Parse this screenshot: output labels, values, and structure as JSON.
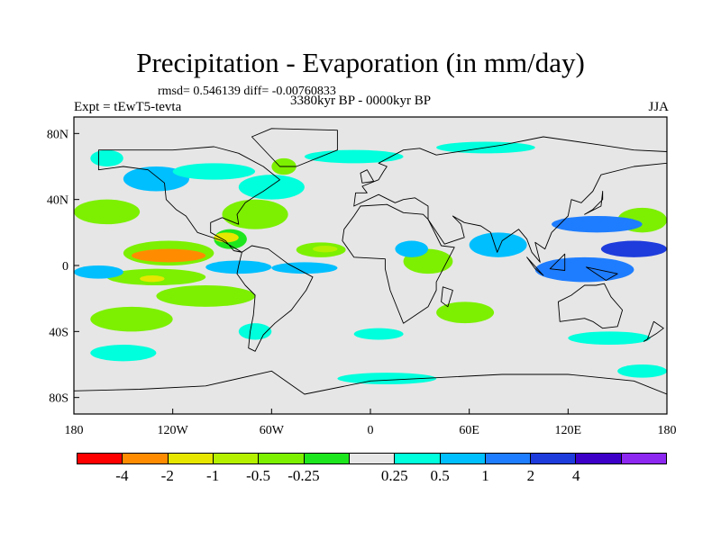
{
  "title": "Precipitation - Evaporation (in mm/day)",
  "stats": "rmsd= 0.546139 diff= -0.00760833",
  "experiment": "Expt = tEwT5-tevta",
  "period": "3380kyr BP - 0000kyr BP",
  "season": "JJA",
  "map": {
    "lon_range": [
      -180,
      180
    ],
    "lat_range": [
      -90,
      90
    ],
    "y_ticks": [
      {
        "label": "80N",
        "lat": 80
      },
      {
        "label": "40N",
        "lat": 40
      },
      {
        "label": "0",
        "lat": 0
      },
      {
        "label": "40S",
        "lat": -40
      },
      {
        "label": "80S",
        "lat": -80
      }
    ],
    "x_ticks": [
      {
        "label": "180",
        "lon": -180
      },
      {
        "label": "120W",
        "lon": -120
      },
      {
        "label": "60W",
        "lon": -60
      },
      {
        "label": "0",
        "lon": 0
      },
      {
        "label": "60E",
        "lon": 60
      },
      {
        "label": "120E",
        "lon": 120
      },
      {
        "label": "180",
        "lon": 180
      }
    ],
    "background_color": "#e6e6e6",
    "anomaly_regions": [
      {
        "lon": [
          -150,
          -95
        ],
        "lat": [
          0,
          15
        ],
        "level": 4
      },
      {
        "lon": [
          -95,
          -75
        ],
        "lat": [
          10,
          22
        ],
        "level": 5
      },
      {
        "lon": [
          -160,
          -100
        ],
        "lat": [
          -12,
          -2
        ],
        "level": 4
      },
      {
        "lon": [
          -45,
          -15
        ],
        "lat": [
          5,
          14
        ],
        "level": 4
      },
      {
        "lon": [
          -130,
          -70
        ],
        "lat": [
          -25,
          -12
        ],
        "level": 4
      },
      {
        "lon": [
          -90,
          -50
        ],
        "lat": [
          22,
          40
        ],
        "level": 4
      },
      {
        "lon": [
          -180,
          -140
        ],
        "lat": [
          25,
          40
        ],
        "level": 4
      },
      {
        "lon": [
          150,
          180
        ],
        "lat": [
          20,
          35
        ],
        "level": 4
      },
      {
        "lon": [
          -170,
          -120
        ],
        "lat": [
          -40,
          -25
        ],
        "level": 4
      },
      {
        "lon": [
          20,
          50
        ],
        "lat": [
          -5,
          10
        ],
        "level": 4
      },
      {
        "lon": [
          40,
          75
        ],
        "lat": [
          -35,
          -22
        ],
        "level": 4
      },
      {
        "lon": [
          -60,
          -45
        ],
        "lat": [
          55,
          65
        ],
        "level": 4
      },
      {
        "lon": [
          -145,
          -100
        ],
        "lat": [
          2,
          10
        ],
        "level": 1
      },
      {
        "lon": [
          -95,
          -80
        ],
        "lat": [
          14,
          20
        ],
        "level": 2
      },
      {
        "lon": [
          -140,
          -125
        ],
        "lat": [
          -10,
          -6
        ],
        "level": 2
      },
      {
        "lon": [
          -35,
          -20
        ],
        "lat": [
          8,
          12
        ],
        "level": 3
      },
      {
        "lon": [
          -180,
          -150
        ],
        "lat": [
          -8,
          0
        ],
        "level": 8
      },
      {
        "lon": [
          -100,
          -60
        ],
        "lat": [
          -5,
          3
        ],
        "level": 8
      },
      {
        "lon": [
          -80,
          -40
        ],
        "lat": [
          40,
          55
        ],
        "level": 7
      },
      {
        "lon": [
          -150,
          -110
        ],
        "lat": [
          45,
          60
        ],
        "level": 8
      },
      {
        "lon": [
          -60,
          -20
        ],
        "lat": [
          -5,
          2
        ],
        "level": 8
      },
      {
        "lon": [
          15,
          35
        ],
        "lat": [
          5,
          15
        ],
        "level": 8
      },
      {
        "lon": [
          60,
          95
        ],
        "lat": [
          5,
          20
        ],
        "level": 8
      },
      {
        "lon": [
          100,
          160
        ],
        "lat": [
          -10,
          5
        ],
        "level": 9
      },
      {
        "lon": [
          110,
          165
        ],
        "lat": [
          20,
          30
        ],
        "level": 9
      },
      {
        "lon": [
          140,
          180
        ],
        "lat": [
          5,
          15
        ],
        "level": 10
      },
      {
        "lon": [
          -120,
          -70
        ],
        "lat": [
          52,
          62
        ],
        "level": 7
      },
      {
        "lon": [
          -40,
          20
        ],
        "lat": [
          62,
          70
        ],
        "level": 7
      },
      {
        "lon": [
          40,
          100
        ],
        "lat": [
          68,
          75
        ],
        "level": 7
      },
      {
        "lon": [
          -170,
          -150
        ],
        "lat": [
          60,
          70
        ],
        "level": 7
      },
      {
        "lon": [
          -80,
          -60
        ],
        "lat": [
          -45,
          -35
        ],
        "level": 7
      },
      {
        "lon": [
          -10,
          20
        ],
        "lat": [
          -45,
          -38
        ],
        "level": 7
      },
      {
        "lon": [
          -170,
          -130
        ],
        "lat": [
          -58,
          -48
        ],
        "level": 7
      },
      {
        "lon": [
          -20,
          40
        ],
        "lat": [
          -72,
          -65
        ],
        "level": 7
      },
      {
        "lon": [
          120,
          170
        ],
        "lat": [
          -48,
          -40
        ],
        "level": 7
      },
      {
        "lon": [
          150,
          180
        ],
        "lat": [
          -68,
          -60
        ],
        "level": 7
      }
    ],
    "land": [
      [
        [
          -165,
          70
        ],
        [
          -140,
          70
        ],
        [
          -120,
          70
        ],
        [
          -95,
          72
        ],
        [
          -80,
          68
        ],
        [
          -65,
          60
        ],
        [
          -55,
          52
        ],
        [
          -65,
          45
        ],
        [
          -70,
          42
        ],
        [
          -76,
          38
        ],
        [
          -81,
          31
        ],
        [
          -80,
          25
        ],
        [
          -90,
          29
        ],
        [
          -97,
          26
        ],
        [
          -97,
          20
        ],
        [
          -88,
          15
        ],
        [
          -83,
          9
        ],
        [
          -78,
          8
        ],
        [
          -90,
          15
        ],
        [
          -105,
          20
        ],
        [
          -112,
          30
        ],
        [
          -118,
          34
        ],
        [
          -124,
          40
        ],
        [
          -125,
          50
        ],
        [
          -135,
          58
        ],
        [
          -150,
          60
        ],
        [
          -165,
          58
        ],
        [
          -165,
          65
        ]
      ],
      [
        [
          -78,
          8
        ],
        [
          -72,
          12
        ],
        [
          -62,
          10
        ],
        [
          -50,
          1
        ],
        [
          -35,
          -7
        ],
        [
          -39,
          -15
        ],
        [
          -48,
          -27
        ],
        [
          -58,
          -35
        ],
        [
          -65,
          -42
        ],
        [
          -70,
          -52
        ],
        [
          -74,
          -50
        ],
        [
          -73,
          -40
        ],
        [
          -71,
          -30
        ],
        [
          -70,
          -18
        ],
        [
          -76,
          -12
        ],
        [
          -81,
          -5
        ],
        [
          -80,
          0
        ]
      ],
      [
        [
          -17,
          15
        ],
        [
          -16,
          22
        ],
        [
          -10,
          30
        ],
        [
          -6,
          36
        ],
        [
          10,
          37
        ],
        [
          20,
          32
        ],
        [
          32,
          31
        ],
        [
          35,
          28
        ],
        [
          43,
          12
        ],
        [
          51,
          11
        ],
        [
          40,
          -10
        ],
        [
          40,
          -15
        ],
        [
          35,
          -25
        ],
        [
          20,
          -35
        ],
        [
          18,
          -30
        ],
        [
          12,
          -15
        ],
        [
          9,
          -2
        ],
        [
          9,
          4
        ],
        [
          -10,
          5
        ],
        [
          -17,
          15
        ]
      ],
      [
        [
          -10,
          36
        ],
        [
          -9,
          44
        ],
        [
          -2,
          44
        ],
        [
          -5,
          48
        ],
        [
          5,
          52
        ],
        [
          8,
          57
        ],
        [
          10,
          60
        ],
        [
          5,
          62
        ],
        [
          20,
          70
        ],
        [
          30,
          71
        ],
        [
          40,
          67
        ],
        [
          60,
          70
        ],
        [
          80,
          73
        ],
        [
          105,
          78
        ],
        [
          140,
          73
        ],
        [
          160,
          70
        ],
        [
          180,
          69
        ],
        [
          180,
          62
        ],
        [
          160,
          60
        ],
        [
          140,
          55
        ],
        [
          135,
          45
        ],
        [
          128,
          38
        ],
        [
          122,
          40
        ],
        [
          120,
          30
        ],
        [
          110,
          20
        ],
        [
          106,
          10
        ],
        [
          100,
          14
        ],
        [
          103,
          2
        ],
        [
          98,
          8
        ],
        [
          95,
          16
        ],
        [
          90,
          22
        ],
        [
          80,
          15
        ],
        [
          77,
          8
        ],
        [
          73,
          20
        ],
        [
          67,
          24
        ],
        [
          57,
          26
        ],
        [
          50,
          30
        ],
        [
          55,
          25
        ],
        [
          57,
          17
        ],
        [
          45,
          13
        ],
        [
          35,
          28
        ],
        [
          35,
          36
        ],
        [
          27,
          41
        ],
        [
          20,
          40
        ],
        [
          15,
          38
        ],
        [
          5,
          43
        ]
      ],
      [
        [
          114,
          -22
        ],
        [
          122,
          -18
        ],
        [
          130,
          -12
        ],
        [
          137,
          -12
        ],
        [
          142,
          -11
        ],
        [
          146,
          -19
        ],
        [
          153,
          -27
        ],
        [
          150,
          -37
        ],
        [
          141,
          -38
        ],
        [
          135,
          -34
        ],
        [
          130,
          -32
        ],
        [
          115,
          -34
        ]
      ],
      [
        [
          -55,
          60
        ],
        [
          -45,
          60
        ],
        [
          -20,
          70
        ],
        [
          -20,
          82
        ],
        [
          -60,
          83
        ],
        [
          -72,
          78
        ]
      ],
      [
        [
          -180,
          -76
        ],
        [
          -140,
          -75
        ],
        [
          -100,
          -73
        ],
        [
          -60,
          -64
        ],
        [
          -40,
          -78
        ],
        [
          0,
          -70
        ],
        [
          40,
          -68
        ],
        [
          80,
          -66
        ],
        [
          120,
          -66
        ],
        [
          160,
          -70
        ],
        [
          180,
          -78
        ],
        [
          180,
          -90
        ],
        [
          -180,
          -90
        ]
      ],
      [
        [
          95,
          5
        ],
        [
          105,
          -6
        ],
        [
          100,
          -2
        ]
      ],
      [
        [
          109,
          -2
        ],
        [
          118,
          7
        ],
        [
          118,
          -3
        ]
      ],
      [
        [
          131,
          -1
        ],
        [
          150,
          -5
        ],
        [
          143,
          -9
        ]
      ],
      [
        [
          130,
          31
        ],
        [
          135,
          34
        ],
        [
          141,
          40
        ],
        [
          141,
          45
        ],
        [
          140,
          36
        ]
      ],
      [
        [
          44,
          -13
        ],
        [
          50,
          -15
        ],
        [
          47,
          -25
        ],
        [
          43,
          -22
        ]
      ],
      [
        [
          -5,
          50
        ],
        [
          2,
          51
        ],
        [
          -2,
          58
        ],
        [
          -6,
          56
        ]
      ],
      [
        [
          166,
          -46
        ],
        [
          174,
          -41
        ],
        [
          178,
          -38
        ],
        [
          172,
          -34
        ],
        [
          168,
          -45
        ]
      ]
    ]
  },
  "colorbar": {
    "colors": [
      "#ff0000",
      "#ff8c00",
      "#e6e600",
      "#b4f000",
      "#7cf000",
      "#1ee61e",
      "#e6e6e6",
      "#00ffdc",
      "#00bfff",
      "#1e7dff",
      "#1e3cdc",
      "#3c00c8",
      "#8c28f0"
    ],
    "labels": [
      "-4",
      "-2",
      "-1",
      "-0.5",
      "-0.25",
      "0.25",
      "0.5",
      "1",
      "2",
      "4"
    ]
  }
}
